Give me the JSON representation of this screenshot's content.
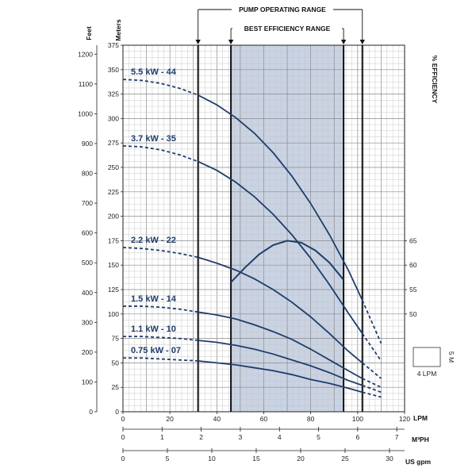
{
  "chart_data": {
    "type": "line",
    "title": "",
    "range_labels": {
      "operating": "PUMP OPERATING RANGE",
      "best": "BEST EFFICIENCY RANGE"
    },
    "operating_range_lpm": [
      32,
      102
    ],
    "best_efficiency_range_lpm": [
      46,
      94
    ],
    "x_axes": [
      {
        "name": "lpm",
        "label": "LPM",
        "range": [
          0,
          120
        ],
        "ticks": [
          0,
          20,
          40,
          60,
          80,
          100,
          120
        ]
      },
      {
        "name": "m3h",
        "label": "M³PH",
        "range": [
          0,
          7.2
        ],
        "ticks": [
          0,
          1,
          2,
          3,
          4,
          5,
          6,
          7
        ]
      },
      {
        "name": "usgpm",
        "label": "US gpm",
        "range": [
          0,
          31.7
        ],
        "ticks": [
          0,
          5,
          10,
          15,
          20,
          25,
          30
        ]
      }
    ],
    "y_axis_meters": {
      "label": "Meters",
      "range": [
        0,
        375
      ],
      "ticks": [
        0,
        25,
        50,
        75,
        100,
        125,
        150,
        175,
        200,
        225,
        250,
        275,
        300,
        325,
        350,
        375
      ]
    },
    "y_axis_feet": {
      "label": "Feet",
      "range": [
        0,
        1230
      ],
      "ticks": [
        0,
        100,
        200,
        300,
        400,
        500,
        600,
        700,
        800,
        900,
        1000,
        1100,
        1200
      ]
    },
    "y_axis_efficiency": {
      "label": "% EFFICIENCY",
      "ticks": [
        50,
        55,
        60,
        65
      ]
    },
    "efficiency_curve": {
      "x": [
        46,
        52,
        58,
        64,
        70,
        76,
        82,
        88,
        94
      ],
      "y": [
        56.5,
        59.5,
        62.2,
        64.1,
        65.0,
        64.6,
        63.0,
        60.5,
        57.0
      ]
    },
    "series": [
      {
        "name": "5.5 kW - 44",
        "x": [
          0,
          8,
          16,
          24,
          32,
          40,
          48,
          56,
          64,
          72,
          80,
          88,
          96,
          102,
          110
        ],
        "y": [
          340,
          339,
          336,
          331,
          324,
          314,
          301,
          285,
          265,
          241,
          213,
          181,
          145,
          114,
          70
        ]
      },
      {
        "name": "3.7 kW - 35",
        "x": [
          0,
          8,
          16,
          24,
          32,
          40,
          48,
          56,
          64,
          72,
          80,
          88,
          96,
          102,
          110
        ],
        "y": [
          272,
          271,
          268,
          263,
          256,
          247,
          235,
          220,
          202,
          181,
          157,
          130,
          101,
          80,
          52
        ]
      },
      {
        "name": "2.2 kW - 22",
        "x": [
          0,
          8,
          16,
          24,
          32,
          40,
          48,
          56,
          64,
          72,
          80,
          88,
          96,
          102,
          110
        ],
        "y": [
          168,
          167,
          165,
          162,
          158,
          152,
          145,
          136,
          125,
          112,
          97,
          80,
          62,
          50,
          34
        ]
      },
      {
        "name": "1.5 kW - 14",
        "x": [
          0,
          8,
          16,
          24,
          32,
          40,
          48,
          56,
          64,
          72,
          80,
          88,
          96,
          102,
          110
        ],
        "y": [
          108,
          108,
          107,
          105,
          102,
          99,
          95,
          89,
          82,
          74,
          64,
          53,
          42,
          34,
          25
        ]
      },
      {
        "name": "1.1 kW - 10",
        "x": [
          0,
          8,
          16,
          24,
          32,
          40,
          48,
          56,
          64,
          72,
          80,
          88,
          96,
          102,
          110
        ],
        "y": [
          77,
          77,
          76,
          75,
          73,
          71,
          68,
          64,
          59,
          53,
          47,
          40,
          32,
          27,
          20
        ]
      },
      {
        "name": "0.75 kW - 07",
        "x": [
          0,
          8,
          16,
          24,
          32,
          40,
          48,
          56,
          64,
          72,
          80,
          88,
          96,
          102,
          110
        ],
        "y": [
          55,
          55,
          54,
          53,
          52,
          50,
          48,
          45,
          42,
          38,
          33,
          29,
          24,
          20,
          15
        ]
      }
    ],
    "scale_box": {
      "width_label": "4 LPM",
      "height_label": "5 M"
    },
    "grid": true
  }
}
